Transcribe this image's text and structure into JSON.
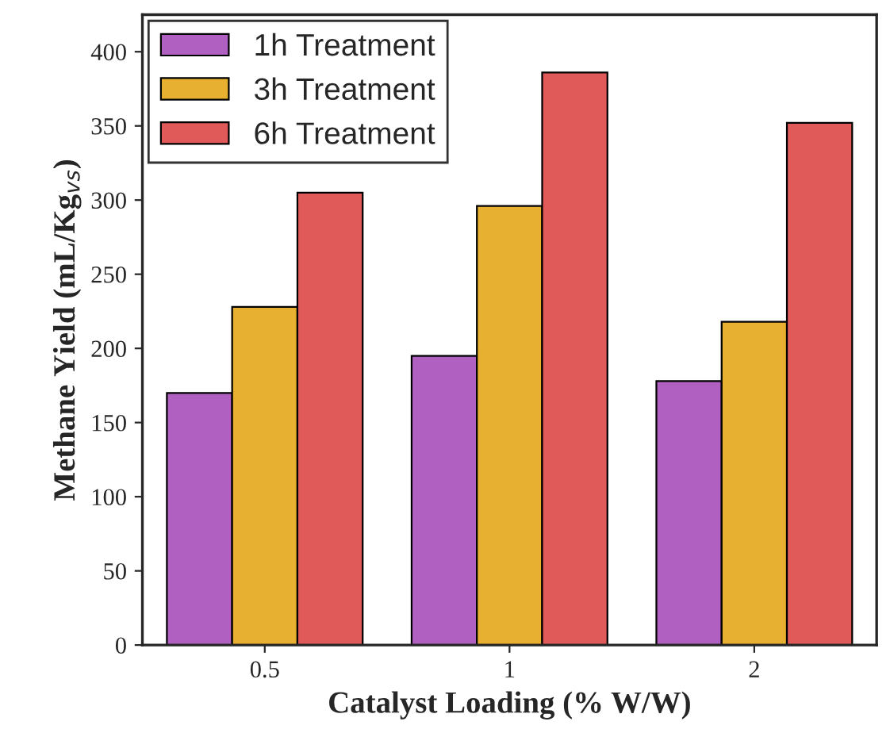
{
  "chart_data": {
    "type": "bar",
    "xlabel": "Catalyst Loading (% W/W)",
    "ylabel": "Methane Yield (mL/Kg$_{vs}$)",
    "categories": [
      "0.5",
      "1",
      "2"
    ],
    "series": [
      {
        "name": "1h Treatment",
        "color": "#b060c0",
        "values": [
          170,
          195,
          178
        ]
      },
      {
        "name": "3h Treatment",
        "color": "#e8b030",
        "values": [
          228,
          296,
          218
        ]
      },
      {
        "name": "6h Treatment",
        "color": "#e05a5a",
        "values": [
          305,
          386,
          352
        ]
      }
    ],
    "ylim": [
      0,
      425
    ],
    "yticks": [
      0,
      50,
      100,
      150,
      200,
      250,
      300,
      350,
      400
    ],
    "legend": "top left",
    "grid": false
  }
}
